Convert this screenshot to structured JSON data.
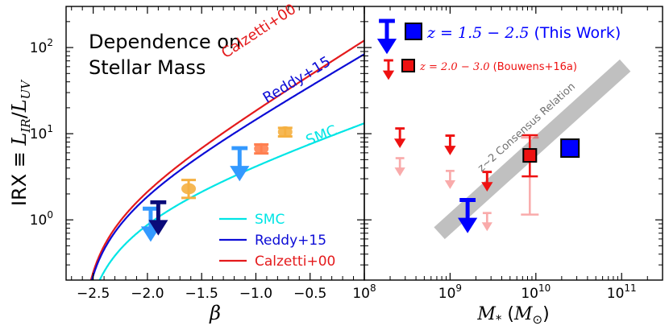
{
  "chart_data": [
    {
      "type": "line",
      "panel": "left",
      "title": "Dependence on Stellar Mass",
      "title_lines": [
        "Dependence on",
        "Stellar Mass"
      ],
      "xlabel": "β",
      "ylabel_prefix": "IRX ≡ ",
      "ylabel_math": "L",
      "ylabel_sub_ir": "IR",
      "ylabel_slash": "/",
      "ylabel_sub_uv": "UV",
      "xlim": [
        -2.75,
        0.0
      ],
      "ylim": [
        0.2,
        300
      ],
      "yscale": "log",
      "x_ticks": [
        -2.5,
        -2.0,
        -1.5,
        -1.0,
        -0.5
      ],
      "x_tick_labels": [
        "−2.5",
        "−2.0",
        "−1.5",
        "−1.0",
        "−0.5"
      ],
      "y_ticks": [
        1,
        10,
        100
      ],
      "y_tick_bases": [
        "10",
        "10",
        "10"
      ],
      "y_tick_exps": [
        "0",
        "1",
        "2"
      ],
      "curves": [
        {
          "name": "Calzetti+00",
          "color": "#e41a1c",
          "beta0": -2.62,
          "coef": 1.99,
          "label_beta": -0.95,
          "label_irx": 140
        },
        {
          "name": "Reddy+15",
          "color": "#0c0cd6",
          "beta0": -2.62,
          "coef": 1.84,
          "label_beta": -0.6,
          "label_irx": 38
        },
        {
          "name": "SMC",
          "color": "#00e5e5",
          "beta0": -2.62,
          "coef": 1.1,
          "label_beta": -0.38,
          "label_irx": 8.5
        }
      ],
      "legend": {
        "location": "bottom-right",
        "entries": [
          "SMC",
          "Reddy+15",
          "Calzetti+00"
        ],
        "colors": [
          "#00e5e5",
          "#0c0cd6",
          "#e41a1c"
        ]
      },
      "upper_limits": [
        {
          "beta": -1.97,
          "irx": 1.35,
          "color": "#3399ff"
        },
        {
          "beta": -1.9,
          "irx": 1.6,
          "color": "#0a0a7a"
        },
        {
          "beta": -1.15,
          "irx": 6.8,
          "color": "#3399ff"
        }
      ],
      "detections": [
        {
          "beta": -1.62,
          "irx": 2.3,
          "err_lo": 0.5,
          "err_hi": 0.6,
          "color": "#f5b041"
        },
        {
          "beta": -0.95,
          "irx": 6.7,
          "err_lo": 0.8,
          "err_hi": 0.8,
          "color": "#ff7f50"
        },
        {
          "beta": -0.73,
          "irx": 10.5,
          "err_lo": 1.2,
          "err_hi": 1.2,
          "color": "#f5b041"
        }
      ]
    },
    {
      "type": "scatter",
      "panel": "right",
      "xlabel_math": "M",
      "xlabel_sub": "*",
      "xlabel_unit_open": " (",
      "xlabel_unit_math": "M",
      "xlabel_unit_sub": "⊙",
      "xlabel_unit_close": ")",
      "xscale": "log",
      "yscale": "log",
      "xlim": [
        100000000,
        300000000000
      ],
      "ylim": [
        0.2,
        300
      ],
      "x_ticks": [
        100000000,
        1000000000,
        10000000000,
        100000000000
      ],
      "x_tick_bases": [
        "10",
        "10",
        "10",
        "10"
      ],
      "x_tick_exps": [
        "8",
        "9",
        "10",
        "11"
      ],
      "annotation": "z~2 Consensus Relation",
      "consensus_band": {
        "x": [
          750000000,
          110000000000
        ],
        "irx": [
          0.7,
          62
        ],
        "color": "#c0c0c0"
      },
      "legend": {
        "location": "top",
        "entries": [
          {
            "math": "z",
            "eq": " = 1.5 − 2.5",
            "rest": " (This Work)",
            "color": "#0000ff"
          },
          {
            "math": "z",
            "eq": " = 2.0 − 3.0",
            "rest": " (Bouwens+16a)",
            "color": "#ee1111"
          }
        ]
      },
      "this_work": {
        "detections": [
          {
            "mass": 25000000000,
            "irx": 6.8
          }
        ],
        "upper_limits": [
          {
            "mass": 1600000000,
            "irx": 1.7
          }
        ],
        "color": "#0000ff"
      },
      "bouwens": {
        "detections": [
          {
            "mass": 8500000000,
            "irx": 5.6,
            "irx_lo": 3.2,
            "irx_hi": 9.6
          }
        ],
        "upper_limits": [
          {
            "mass": 260000000,
            "irx": 11.5
          },
          {
            "mass": 1000000000,
            "irx": 9.5
          },
          {
            "mass": 2700000000,
            "irx": 3.6
          }
        ],
        "faded_upper_limits": [
          {
            "mass": 260000000,
            "irx": 5.2
          },
          {
            "mass": 1000000000,
            "irx": 3.7
          },
          {
            "mass": 2700000000,
            "irx": 1.2
          }
        ],
        "faded_detection": {
          "mass": 8500000000,
          "irx": 5.6,
          "irx_lo": 1.15,
          "irx_hi": 9.0
        },
        "color": "#ee1111"
      }
    }
  ]
}
